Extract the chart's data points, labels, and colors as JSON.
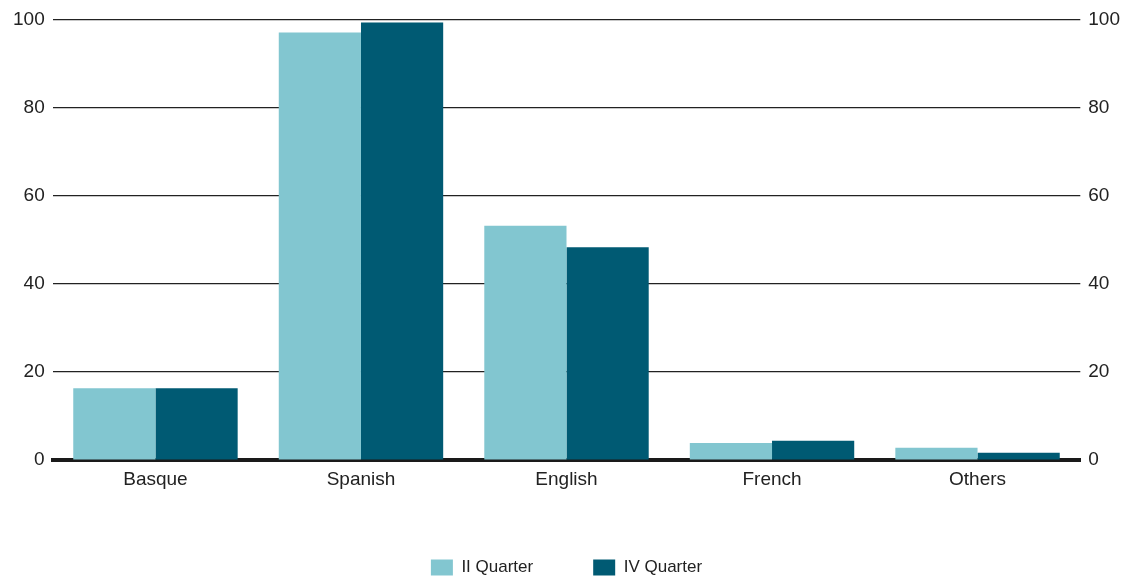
{
  "chart_data": {
    "type": "bar",
    "categories": [
      "Basque",
      "Spanish",
      "English",
      "French",
      "Others"
    ],
    "series": [
      {
        "name": "II Quarter",
        "color": "#82c6d0",
        "values": [
          16.3,
          97,
          53.2,
          3.9,
          2.8
        ]
      },
      {
        "name": "IV Quarter",
        "color": "#005a73",
        "values": [
          16.3,
          99.3,
          48.3,
          4.4,
          1.7
        ]
      }
    ],
    "ylim": [
      0,
      100
    ],
    "yticks": [
      0,
      20,
      40,
      60,
      80,
      100
    ],
    "y2lim": [
      0,
      100
    ],
    "y2ticks": [
      0,
      20,
      40,
      60,
      80,
      100
    ],
    "grid": "y",
    "legend": "bottom"
  }
}
